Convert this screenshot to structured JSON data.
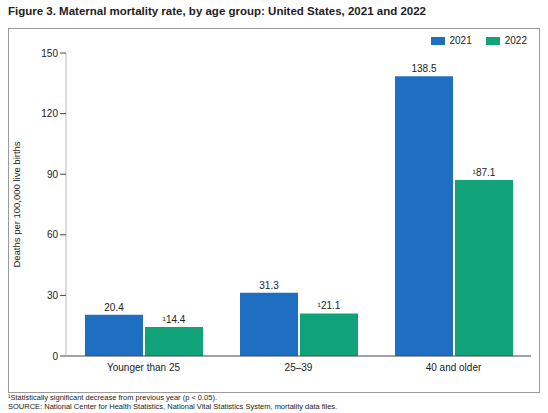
{
  "chart_data": {
    "type": "bar",
    "title": "Figure 3. Maternal mortality rate, by age group: United States, 2021 and 2022",
    "y_label": "Deaths per 100,000 live births",
    "categories": [
      "Younger than 25",
      "25–39",
      "40 and older"
    ],
    "series": [
      {
        "name": "2021",
        "color": "#1e6fc2",
        "values": [
          20.4,
          31.3,
          138.5
        ]
      },
      {
        "name": "2022",
        "color": "#10a37a",
        "values": [
          14.4,
          21.1,
          87.1
        ],
        "value_labels": [
          "¹14.4",
          "¹21.1",
          "¹87.1"
        ]
      }
    ],
    "ylim": [
      0,
      150
    ],
    "yticks": [
      0,
      30,
      60,
      90,
      120,
      150
    ],
    "grid": false,
    "legend": "upper right",
    "data_labels": true,
    "footnotes": [
      "¹Statistically significant decrease from previous year (p < 0.05).",
      "SOURCE: National Center for Health Statistics, National Vital Statistics System, mortality data files."
    ]
  }
}
